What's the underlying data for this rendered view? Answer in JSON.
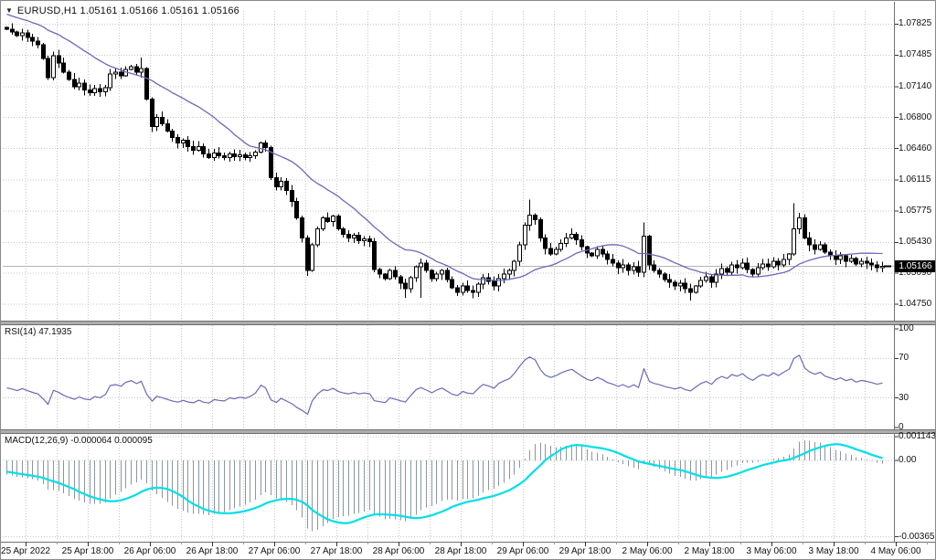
{
  "header": {
    "title": "EURUSD,H1  1.05161 1.05166 1.05161 1.05166",
    "symbol": "EURUSD",
    "timeframe": "H1",
    "ohlc": {
      "open": "1.05161",
      "high": "1.05166",
      "low": "1.05161",
      "close": "1.05166"
    }
  },
  "main": {
    "price_ticks": [
      "1.07825",
      "1.07485",
      "1.07140",
      "1.06800",
      "1.06460",
      "1.06115",
      "1.05775",
      "1.05430",
      "1.05090",
      "1.04750"
    ],
    "bid_tag": "1.05166",
    "bid": 1.05166
  },
  "rsi": {
    "label": "RSI(14) 47.1935",
    "indicator": "RSI",
    "period": 14,
    "value": "47.1935",
    "ticks": [
      "100",
      "70",
      "30",
      "0"
    ],
    "level_lines": [
      70,
      30
    ]
  },
  "macd": {
    "label": "MACD(12,26,9) -0.000064 0.000095",
    "params": "12,26,9",
    "main_value": "-0.000064",
    "signal_value": "0.000095",
    "ticks": [
      "0.001143",
      "0.00",
      "-0.003656"
    ]
  },
  "time_axis": {
    "labels": [
      "25 Apr 2022",
      "25 Apr 18:00",
      "26 Apr 06:00",
      "26 Apr 18:00",
      "27 Apr 06:00",
      "27 Apr 18:00",
      "28 Apr 06:00",
      "28 Apr 18:00",
      "29 Apr 06:00",
      "29 Apr 18:00",
      "2 May 06:00",
      "2 May 18:00",
      "3 May 06:00",
      "3 May 18:00",
      "4 May 06:00"
    ]
  },
  "colors": {
    "background": "#ffffff",
    "grid": "#c6c6c6",
    "candle_bear": "#000000",
    "candle_bull": "#ffffff",
    "candle_outline": "#000000",
    "ma_line": "#6a6ab8",
    "rsi_line": "#6a6ab8",
    "macd_histogram": "#8c96a0",
    "macd_signal": "#00dfe8",
    "bid_line": "#b4b4b4",
    "tag_bg": "#000000",
    "tag_fg": "#ffffff",
    "axis_border": "#707070"
  },
  "chart_data": {
    "type": "candlestick",
    "symbol": "EURUSD",
    "timeframe": "H1",
    "title": "EURUSD,H1  1.05161 1.05166 1.05161 1.05166",
    "price_range": [
      1.0456,
      1.0797
    ],
    "macd_range": [
      -0.00383,
      0.00126
    ],
    "ma_period": 20,
    "first_open": 1.0779,
    "closes": [
      1.0777,
      1.0774,
      1.077,
      1.0773,
      1.0768,
      1.0764,
      1.076,
      1.0745,
      1.0724,
      1.0748,
      1.074,
      1.073,
      1.0722,
      1.0714,
      1.0718,
      1.071,
      1.0707,
      1.0712,
      1.0708,
      1.0713,
      1.0728,
      1.073,
      1.0726,
      1.0733,
      1.0736,
      1.073,
      1.0734,
      1.07,
      1.067,
      1.068,
      1.0673,
      1.0665,
      1.0658,
      1.0652,
      1.0655,
      1.0648,
      1.0644,
      1.0648,
      1.064,
      1.0636,
      1.0641,
      1.0638,
      1.0636,
      1.064,
      1.0637,
      1.0639,
      1.0636,
      1.0638,
      1.0642,
      1.0652,
      1.0647,
      1.0614,
      1.0604,
      1.061,
      1.06,
      1.0588,
      1.057,
      1.0548,
      1.0512,
      1.054,
      1.0558,
      1.057,
      1.0566,
      1.0572,
      1.0558,
      1.0552,
      1.0548,
      1.0551,
      1.0545,
      1.0547,
      1.0544,
      1.0513,
      1.0508,
      1.0503,
      1.0512,
      1.0505,
      1.0498,
      1.0492,
      1.0504,
      1.0516,
      1.052,
      1.0512,
      1.0503,
      1.0508,
      1.0512,
      1.0502,
      1.0493,
      1.0488,
      1.0495,
      1.049,
      1.0488,
      1.0497,
      1.0504,
      1.05,
      1.0495,
      1.0503,
      1.0508,
      1.0512,
      1.0522,
      1.054,
      1.0562,
      1.0573,
      1.0568,
      1.0548,
      1.0536,
      1.053,
      1.0535,
      1.0542,
      1.0548,
      1.0552,
      1.0546,
      1.0538,
      1.0531,
      1.0528,
      1.0535,
      1.053,
      1.0524,
      1.052,
      1.0515,
      1.0518,
      1.0512,
      1.0516,
      1.051,
      1.055,
      1.0518,
      1.0512,
      1.0508,
      1.0502,
      1.0499,
      1.0495,
      1.0498,
      1.0492,
      1.0488,
      1.0495,
      1.0501,
      1.0505,
      1.0499,
      1.0508,
      1.0514,
      1.051,
      1.0518,
      1.0515,
      1.052,
      1.0513,
      1.0508,
      1.0515,
      1.0519,
      1.0516,
      1.0522,
      1.0518,
      1.0524,
      1.053,
      1.0558,
      1.057,
      1.0548,
      1.054,
      1.0535,
      1.054,
      1.0532,
      1.0528,
      1.0524,
      1.0528,
      1.0522,
      1.0525,
      1.0519,
      1.0522,
      1.052,
      1.0518,
      1.0515,
      1.05166
    ],
    "wick_overrides": {
      "26": {
        "h": 1.0746
      },
      "58": {
        "l": 1.0506
      },
      "77": {
        "l": 1.0482
      },
      "80": {
        "l": 1.0482
      },
      "101": {
        "h": 1.059
      },
      "123": {
        "h": 1.0565
      },
      "132": {
        "l": 1.0479
      },
      "152": {
        "h": 1.0586
      }
    }
  }
}
